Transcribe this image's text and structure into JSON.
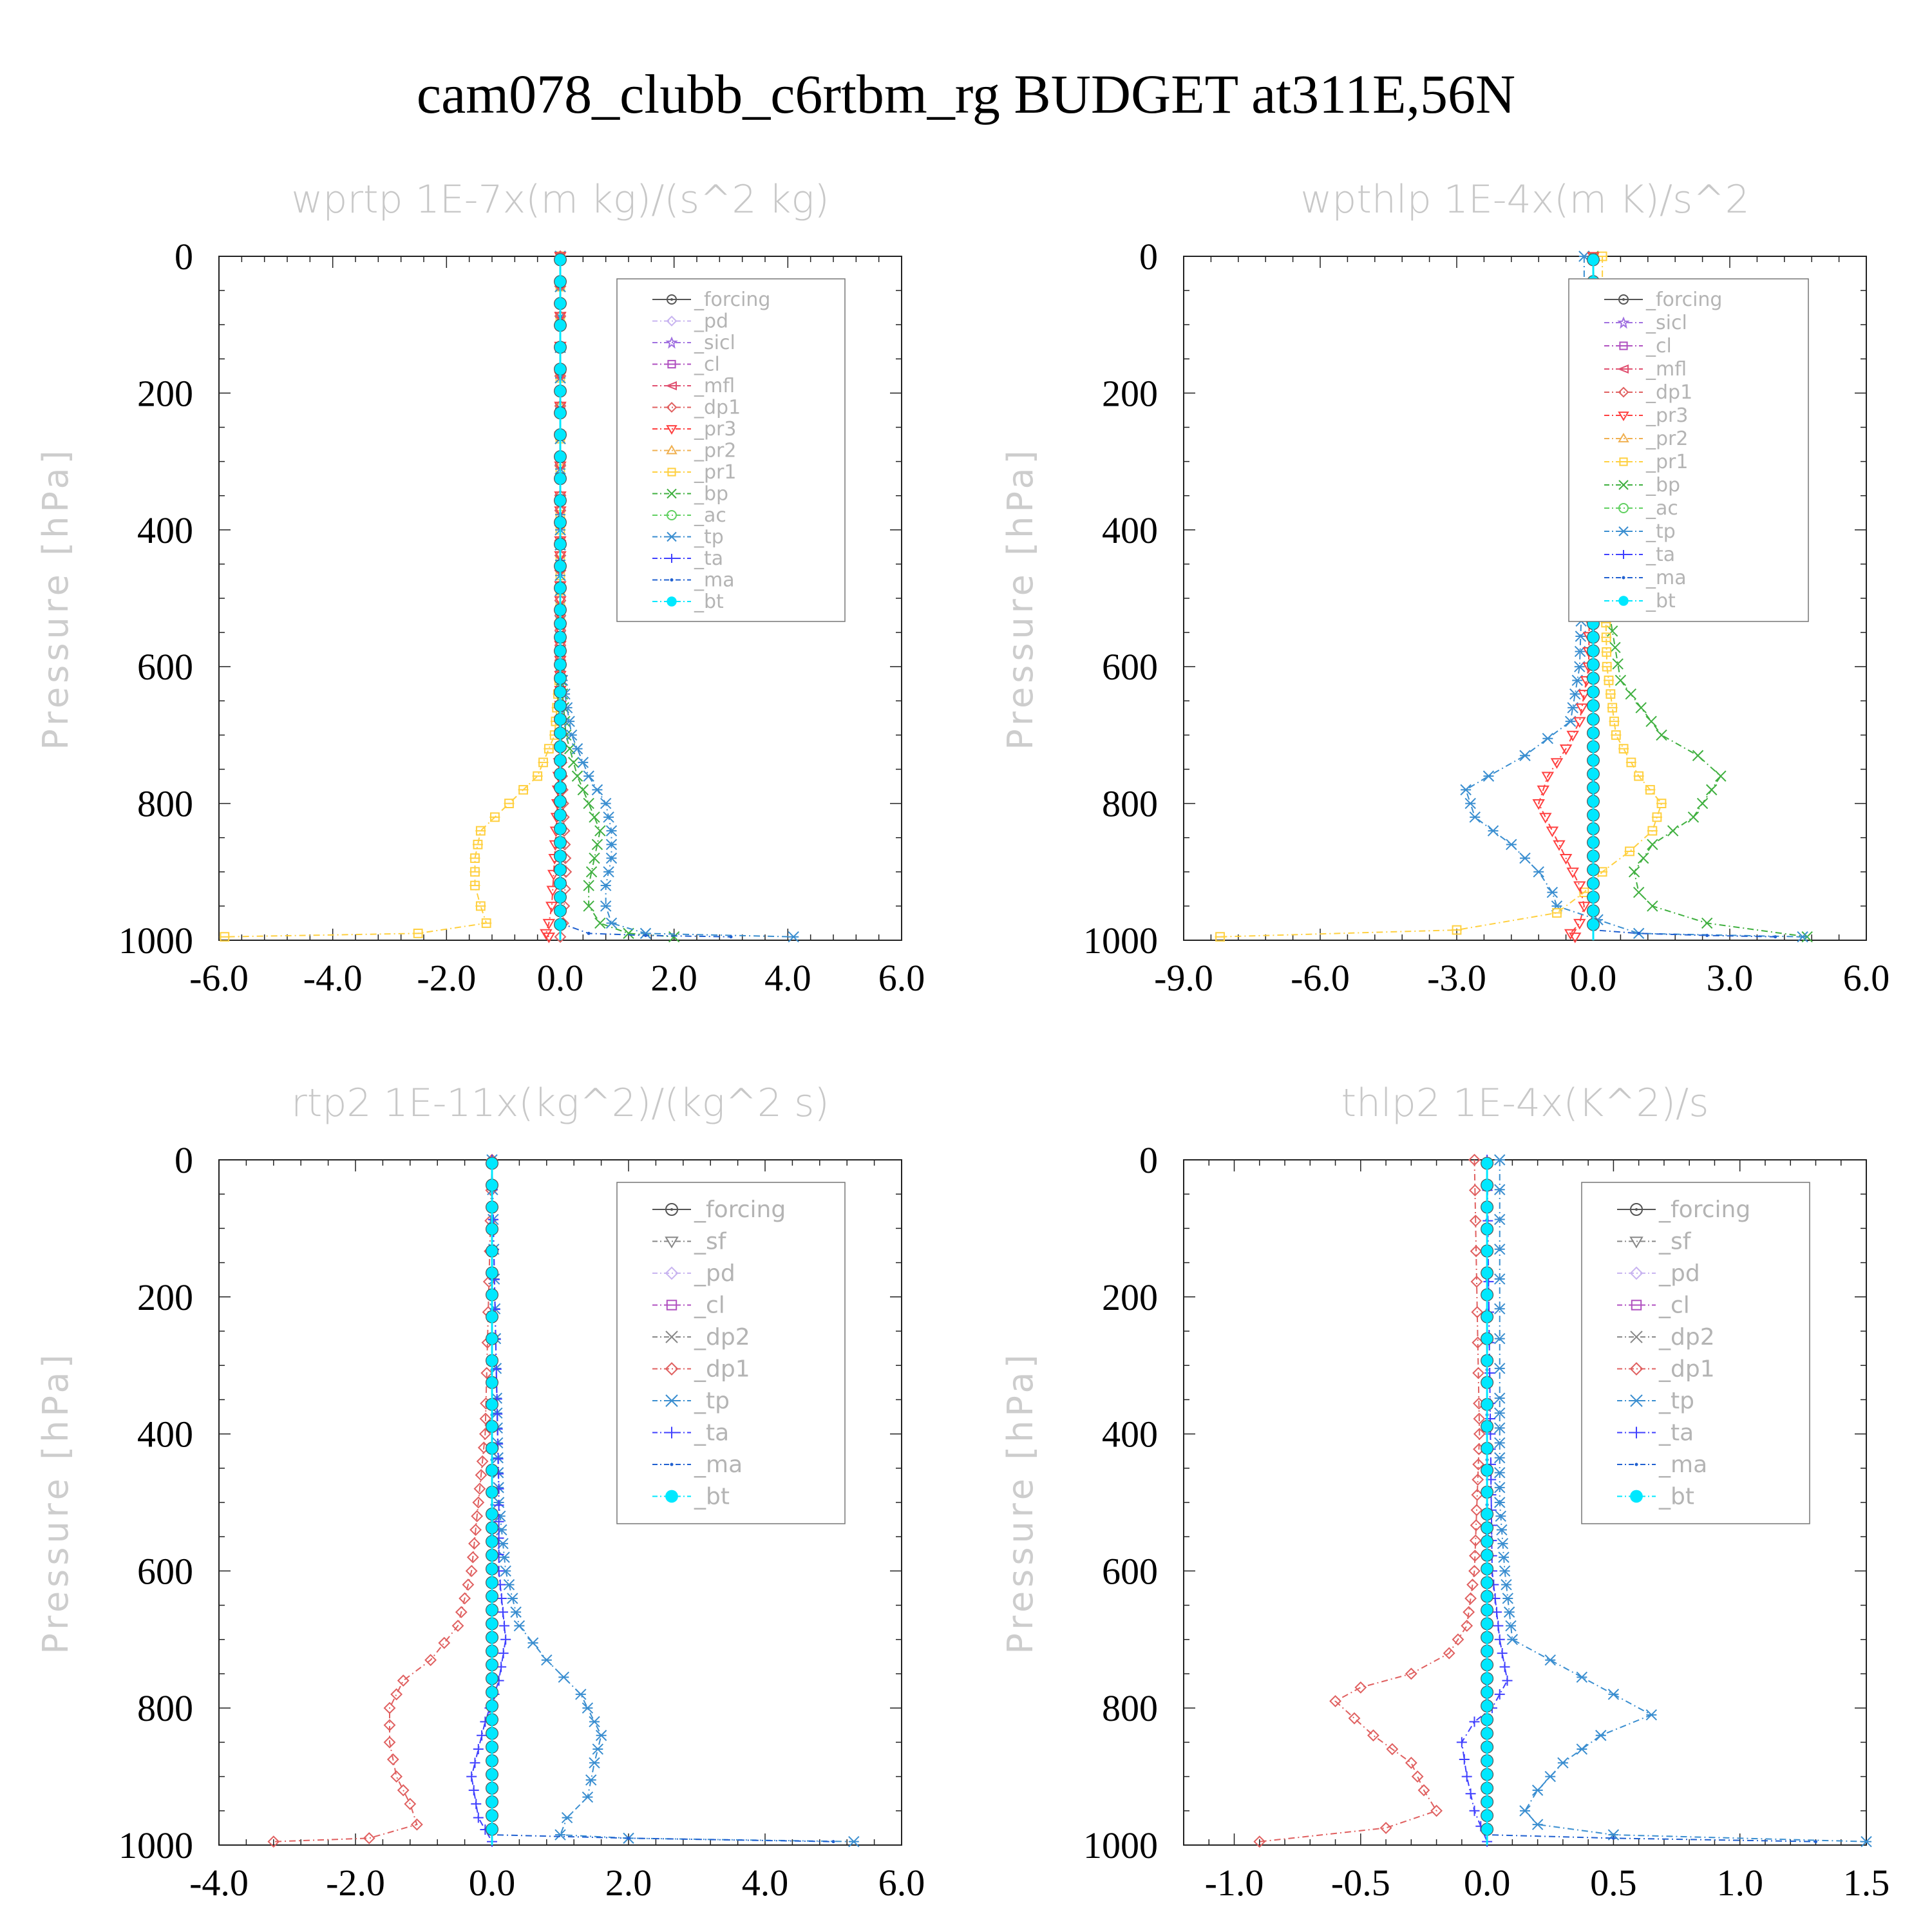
{
  "title": "cam078_clubb_c6rtbm_rg  BUDGET at311E,56N",
  "colors": {
    "_forcing": "#555555",
    "_pd": "#c8b4f0",
    "_sicl": "#a070e0",
    "_cl": "#b050c0",
    "_mfl": "#e05070",
    "_dp1": "#e06060",
    "_pr3": "#ff4040",
    "_pr2": "#f0b050",
    "_pr1": "#ffd040",
    "_bp": "#40b040",
    "_ac": "#60d060",
    "_tp": "#3a8ed0",
    "_ta": "#4040ff",
    "_ma": "#2060d0",
    "_bt": "#00e8ff"
  },
  "chart_data": [
    {
      "type": "line",
      "title": "wprtp  1E-7x(m kg)/(s^2 kg)",
      "ylabel": "Pressure [hPa]",
      "xlim": [
        -6,
        6
      ],
      "ylim": [
        1000,
        0
      ],
      "xticks": [
        "-6.0",
        "-4.0",
        "-2.0",
        "0.0",
        "2.0",
        "4.0",
        "6.0"
      ],
      "yticks": [
        "0",
        "200",
        "400",
        "600",
        "800",
        "1000"
      ],
      "legend": [
        "_forcing",
        "_pd",
        "_sicl",
        "_cl",
        "_mfl",
        "_dp1",
        "_pr3",
        "_pr2",
        "_pr1",
        "_bp",
        "_ac",
        "_tp",
        "_ta",
        "_ma",
        "_bt"
      ],
      "series": [
        {
          "name": "_pr1",
          "x": [
            0,
            0,
            -0.1,
            -0.4,
            -0.9,
            -1.4,
            -1.5,
            -1.5,
            -1.4,
            -1.3,
            -2.5,
            -5.9
          ],
          "y": [
            0,
            600,
            700,
            760,
            800,
            840,
            880,
            920,
            950,
            975,
            990,
            995
          ]
        },
        {
          "name": "_bp",
          "x": [
            0,
            0,
            0.1,
            0.3,
            0.5,
            0.7,
            0.6,
            0.5,
            0.5,
            0.7,
            1.2,
            2.0
          ],
          "y": [
            0,
            600,
            700,
            760,
            800,
            840,
            880,
            920,
            950,
            975,
            990,
            995
          ]
        },
        {
          "name": "_tp",
          "x": [
            0,
            0,
            0.2,
            0.5,
            0.8,
            0.9,
            0.9,
            0.8,
            0.8,
            0.9,
            1.5,
            4.1
          ],
          "y": [
            0,
            600,
            700,
            760,
            800,
            840,
            880,
            920,
            950,
            975,
            990,
            995
          ]
        },
        {
          "name": "_pr3",
          "x": [
            0,
            0,
            -0.05,
            -0.1,
            -0.15,
            -0.2,
            -0.25,
            -0.2
          ],
          "y": [
            0,
            700,
            800,
            880,
            950,
            975,
            990,
            995
          ]
        },
        {
          "name": "_dp1",
          "x": [
            0,
            0,
            0.05,
            0.1,
            0.05,
            0
          ],
          "y": [
            0,
            700,
            800,
            900,
            975,
            995
          ]
        },
        {
          "name": "_ma",
          "x": [
            0,
            0,
            0.5,
            1.5,
            3.0
          ],
          "y": [
            0,
            975,
            990,
            993,
            995
          ]
        },
        {
          "name": "_forcing",
          "x": [
            0,
            0
          ],
          "y": [
            0,
            1000
          ]
        },
        {
          "name": "_bt",
          "x": [
            0,
            0
          ],
          "y": [
            0,
            1000
          ]
        }
      ]
    },
    {
      "type": "line",
      "title": "wpthlp  1E-4x(m K)/s^2",
      "ylabel": "Pressure [hPa]",
      "xlim": [
        -9,
        6
      ],
      "ylim": [
        1000,
        0
      ],
      "xticks": [
        "-9.0",
        "-6.0",
        "-3.0",
        "0.0",
        "3.0",
        "6.0"
      ],
      "yticks": [
        "0",
        "200",
        "400",
        "600",
        "800",
        "1000"
      ],
      "legend": [
        "_forcing",
        "_sicl",
        "_cl",
        "_mfl",
        "_dp1",
        "_pr3",
        "_pr2",
        "_pr1",
        "_bp",
        "_ac",
        "_tp",
        "_ta",
        "_ma",
        "_bt"
      ],
      "series": [
        {
          "name": "_bp",
          "x": [
            0,
            0.1,
            0.3,
            0.6,
            1.5,
            2.3,
            2.8,
            2.2,
            1.3,
            0.9,
            1.0,
            1.3,
            2.5,
            4.7
          ],
          "y": [
            0,
            300,
            500,
            620,
            700,
            730,
            760,
            820,
            860,
            900,
            930,
            950,
            975,
            995
          ]
        },
        {
          "name": "_tp",
          "x": [
            -0.2,
            -0.2,
            -0.3,
            -0.5,
            -1.5,
            -2.3,
            -2.8,
            -2.6,
            -1.8,
            -1.2,
            -0.9,
            -0.8,
            1.0,
            4.6
          ],
          "y": [
            0,
            400,
            600,
            680,
            730,
            760,
            780,
            820,
            860,
            900,
            930,
            950,
            990,
            995
          ]
        },
        {
          "name": "_pr1",
          "x": [
            0.2,
            0.2,
            0.3,
            0.5,
            1.0,
            1.5,
            1.3,
            0.8,
            0.2,
            -0.2,
            -0.8,
            -3.0,
            -8.2
          ],
          "y": [
            0,
            300,
            600,
            700,
            760,
            800,
            840,
            870,
            900,
            930,
            960,
            985,
            995
          ]
        },
        {
          "name": "_pr3",
          "x": [
            0,
            -0.1,
            -0.3,
            -0.6,
            -1.0,
            -1.2,
            -0.9,
            -0.6,
            -0.3,
            -0.2,
            -0.3,
            -0.5,
            -0.4
          ],
          "y": [
            0,
            600,
            680,
            720,
            760,
            800,
            840,
            880,
            920,
            950,
            975,
            990,
            995
          ]
        },
        {
          "name": "_ma",
          "x": [
            0,
            0,
            1.0,
            2.5,
            4.0
          ],
          "y": [
            0,
            985,
            990,
            993,
            995
          ]
        },
        {
          "name": "_forcing",
          "x": [
            0,
            0
          ],
          "y": [
            0,
            1000
          ]
        },
        {
          "name": "_bt",
          "x": [
            0,
            0
          ],
          "y": [
            0,
            1000
          ]
        }
      ]
    },
    {
      "type": "line",
      "title": "rtp2  1E-11x(kg^2)/(kg^2 s)",
      "ylabel": "Pressure [hPa]",
      "xlim": [
        -4,
        6
      ],
      "ylim": [
        1000,
        0
      ],
      "xticks": [
        "-4.0",
        "-2.0",
        "0.0",
        "2.0",
        "4.0",
        "6.0"
      ],
      "yticks": [
        "0",
        "200",
        "400",
        "600",
        "800",
        "1000"
      ],
      "legend": [
        "_forcing",
        "_sf",
        "_pd",
        "_cl",
        "_dp2",
        "_dp1",
        "_tp",
        "_ta",
        "_ma",
        "_bt"
      ],
      "series": [
        {
          "name": "_dp1",
          "x": [
            0,
            -0.1,
            -0.2,
            -0.3,
            -0.5,
            -0.9,
            -1.3,
            -1.5,
            -1.5,
            -1.4,
            -1.2,
            -1.1,
            -1.8,
            -3.2
          ],
          "y": [
            0,
            400,
            500,
            600,
            680,
            730,
            760,
            800,
            850,
            900,
            940,
            970,
            990,
            995
          ]
        },
        {
          "name": "_tp",
          "x": [
            0,
            0.1,
            0.2,
            0.4,
            0.8,
            1.3,
            1.6,
            1.5,
            1.4,
            1.1,
            1.0,
            2.0,
            5.3
          ],
          "y": [
            0,
            500,
            600,
            680,
            730,
            780,
            840,
            880,
            930,
            960,
            985,
            990,
            995
          ]
        },
        {
          "name": "_ta",
          "x": [
            0,
            0.1,
            0.1,
            0.2,
            0.1,
            -0.1,
            -0.2,
            -0.3,
            -0.2,
            0
          ],
          "y": [
            0,
            480,
            600,
            700,
            760,
            820,
            860,
            900,
            960,
            995
          ]
        },
        {
          "name": "_ma",
          "x": [
            0,
            0,
            2.0,
            5.0
          ],
          "y": [
            0,
            985,
            990,
            995
          ]
        },
        {
          "name": "_forcing",
          "x": [
            0,
            0
          ],
          "y": [
            0,
            1000
          ]
        },
        {
          "name": "_bt",
          "x": [
            0,
            0
          ],
          "y": [
            0,
            1000
          ]
        }
      ]
    },
    {
      "type": "line",
      "title": "thlp2  1E-4x(K^2)/s",
      "ylabel": "Pressure [hPa]",
      "xlim": [
        -1.2,
        1.5
      ],
      "ylim": [
        1000,
        0
      ],
      "xticks": [
        "-1.0",
        "-0.5",
        "0.0",
        "0.5",
        "1.0",
        "1.5"
      ],
      "yticks": [
        "0",
        "200",
        "400",
        "600",
        "800",
        "1000"
      ],
      "legend": [
        "_forcing",
        "_sf",
        "_pd",
        "_cl",
        "_dp2",
        "_dp1",
        "_tp",
        "_ta",
        "_ma",
        "_bt"
      ],
      "series": [
        {
          "name": "_dp1",
          "x": [
            -0.05,
            -0.03,
            -0.05,
            -0.08,
            -0.15,
            -0.3,
            -0.5,
            -0.6,
            -0.45,
            -0.3,
            -0.25,
            -0.2,
            -0.4,
            -0.9
          ],
          "y": [
            0,
            400,
            600,
            680,
            720,
            750,
            770,
            790,
            840,
            880,
            920,
            950,
            975,
            995
          ]
        },
        {
          "name": "_tp",
          "x": [
            0.05,
            0.05,
            0.07,
            0.1,
            0.25,
            0.5,
            0.65,
            0.45,
            0.3,
            0.2,
            0.15,
            0.2,
            0.5,
            1.5
          ],
          "y": [
            0,
            500,
            600,
            700,
            730,
            780,
            810,
            840,
            880,
            920,
            950,
            970,
            985,
            995
          ]
        },
        {
          "name": "_ta",
          "x": [
            0,
            0.02,
            0.05,
            0.08,
            0.02,
            -0.05,
            -0.1,
            -0.08,
            -0.05,
            0
          ],
          "y": [
            0,
            600,
            700,
            760,
            800,
            820,
            850,
            900,
            950,
            995
          ]
        },
        {
          "name": "_ma",
          "x": [
            0,
            0,
            0.5,
            1.3
          ],
          "y": [
            0,
            985,
            990,
            995
          ]
        },
        {
          "name": "_forcing",
          "x": [
            0,
            0
          ],
          "y": [
            0,
            1000
          ]
        },
        {
          "name": "_bt",
          "x": [
            0,
            0
          ],
          "y": [
            0,
            1000
          ]
        }
      ]
    }
  ]
}
